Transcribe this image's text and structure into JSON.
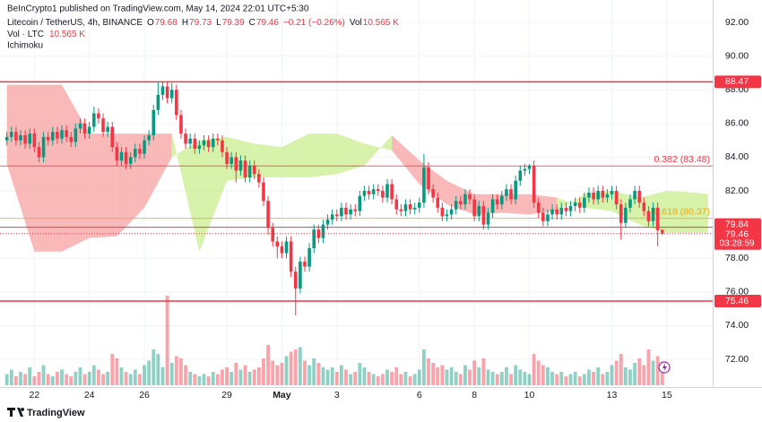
{
  "header": {
    "publisher": "BeInCrypto1 published on TradingView.com, May 14, 2024 22:01 UTC+5:30",
    "brand": "TradingView"
  },
  "chart_data": {
    "type": "candlestick",
    "title": "Litecoin / TetherUS, 4h, BINANCE",
    "ohlc_labels": [
      "O",
      "H",
      "L",
      "C"
    ],
    "change_label": "−0.21 (−0.26%)",
    "volume_title": "Vol",
    "volume_pane_title": "Vol · LTC",
    "last_volume_label": "10.565 K",
    "indicator": "Ichimoku",
    "countdown": "03:28:59",
    "xlim": [
      -1.5,
      154
    ],
    "ylim": [
      70.46,
      93.33
    ],
    "grid": true,
    "xticks": [
      {
        "value": 6,
        "label": "22"
      },
      {
        "value": 18,
        "label": "24"
      },
      {
        "value": 30,
        "label": "26"
      },
      {
        "value": 48,
        "label": "29"
      },
      {
        "value": 60,
        "label": "May"
      },
      {
        "value": 72,
        "label": "3"
      },
      {
        "value": 90,
        "label": "6"
      },
      {
        "value": 102,
        "label": "8"
      },
      {
        "value": 114,
        "label": "10"
      },
      {
        "value": 132,
        "label": "13"
      },
      {
        "value": 144,
        "label": "15"
      }
    ],
    "yticks": [
      {
        "value": 92,
        "label": "92.00"
      },
      {
        "value": 90,
        "label": "90.00"
      },
      {
        "value": 88,
        "label": "88.00"
      },
      {
        "value": 86,
        "label": "86.00"
      },
      {
        "value": 84,
        "label": "84.00"
      },
      {
        "value": 82,
        "label": "82.00"
      },
      {
        "value": 78,
        "label": "78.00"
      },
      {
        "value": 76,
        "label": "76.00"
      },
      {
        "value": 74,
        "label": "74.00"
      },
      {
        "value": 72,
        "label": "72.00"
      }
    ],
    "levels": [
      {
        "value": 88.47,
        "color": "#f23645"
      },
      {
        "value": 75.46,
        "color": "#f23645"
      }
    ],
    "marker_line": {
      "value": 79.84,
      "color": "#f23645"
    },
    "fib": [
      {
        "value": 83.48,
        "label": "0.382 (83.48)",
        "color": "#f23645"
      },
      {
        "value": 80.37,
        "label": "0.618 (80.37)",
        "color": "#f7a600"
      }
    ],
    "ichimoku": {
      "bull_color": "#c9ee8f",
      "bear_color": "#f7a1a1",
      "x": [
        0,
        6,
        12,
        18,
        24,
        30,
        36,
        42,
        48,
        54,
        60,
        66,
        72,
        78,
        84,
        90,
        96,
        102,
        108,
        114,
        120,
        126,
        132,
        138,
        144,
        150,
        153
      ],
      "span_a": [
        83.6,
        78.4,
        78.4,
        79.2,
        79.3,
        81.0,
        84.0,
        85.0,
        85.2,
        84.8,
        84.6,
        85.4,
        85.4,
        84.8,
        84.4,
        82.4,
        81.2,
        80.6,
        80.7,
        80.6,
        80.8,
        81.8,
        82.0,
        81.6,
        82.0,
        81.9,
        81.8
      ],
      "span_b": [
        88.3,
        88.3,
        88.3,
        85.4,
        85.4,
        85.4,
        85.4,
        78.4,
        82.6,
        82.8,
        82.8,
        82.8,
        83.0,
        83.5,
        85.3,
        83.8,
        82.6,
        81.8,
        81.8,
        81.8,
        81.6,
        81.0,
        80.8,
        80.0,
        79.5,
        79.5,
        79.5
      ]
    },
    "series": [
      {
        "up_color": "#089981",
        "down_color": "#f23645",
        "ohlc": [
          [
            85.0,
            85.5,
            84.7,
            85.2
          ],
          [
            85.2,
            85.8,
            84.9,
            85.5
          ],
          [
            85.5,
            85.8,
            84.7,
            85.0
          ],
          [
            85.0,
            85.6,
            84.7,
            85.3
          ],
          [
            85.3,
            85.6,
            84.5,
            84.8
          ],
          [
            84.8,
            85.7,
            84.5,
            85.4
          ],
          [
            85.4,
            85.7,
            84.3,
            84.6
          ],
          [
            84.6,
            84.9,
            83.7,
            84.0
          ],
          [
            84.0,
            85.5,
            83.7,
            85.2
          ],
          [
            85.2,
            85.5,
            84.7,
            85.0
          ],
          [
            85.0,
            85.8,
            84.7,
            85.5
          ],
          [
            85.5,
            85.8,
            84.8,
            85.1
          ],
          [
            85.1,
            85.9,
            84.8,
            85.6
          ],
          [
            85.6,
            85.9,
            84.9,
            85.2
          ],
          [
            85.2,
            85.5,
            84.6,
            84.9
          ],
          [
            84.9,
            86.0,
            84.6,
            85.7
          ],
          [
            85.7,
            86.3,
            85.4,
            86.0
          ],
          [
            86.0,
            86.3,
            85.1,
            85.4
          ],
          [
            85.4,
            86.1,
            85.1,
            85.8
          ],
          [
            85.8,
            87.0,
            85.5,
            86.6
          ],
          [
            86.6,
            86.9,
            86.0,
            86.3
          ],
          [
            86.3,
            86.6,
            85.2,
            85.5
          ],
          [
            85.5,
            86.1,
            85.2,
            85.8
          ],
          [
            85.8,
            86.1,
            84.3,
            84.6
          ],
          [
            84.6,
            84.9,
            83.5,
            83.8
          ],
          [
            83.8,
            84.6,
            83.5,
            84.3
          ],
          [
            84.3,
            84.6,
            83.3,
            83.6
          ],
          [
            83.6,
            84.3,
            83.3,
            84.0
          ],
          [
            84.0,
            84.8,
            83.7,
            84.5
          ],
          [
            84.5,
            84.8,
            83.9,
            84.2
          ],
          [
            84.2,
            85.3,
            83.9,
            85.0
          ],
          [
            85.0,
            85.6,
            84.7,
            85.3
          ],
          [
            85.3,
            87.1,
            85.0,
            86.8
          ],
          [
            86.8,
            88.5,
            86.5,
            87.7
          ],
          [
            87.7,
            88.5,
            87.4,
            88.2
          ],
          [
            88.2,
            88.5,
            87.2,
            87.5
          ],
          [
            87.5,
            88.4,
            87.2,
            88.0
          ],
          [
            88.0,
            88.3,
            86.2,
            86.5
          ],
          [
            86.5,
            86.8,
            85.1,
            85.4
          ],
          [
            85.4,
            85.7,
            84.5,
            84.8
          ],
          [
            84.8,
            85.4,
            84.5,
            85.1
          ],
          [
            85.1,
            85.4,
            84.2,
            84.5
          ],
          [
            84.5,
            85.0,
            84.2,
            84.7
          ],
          [
            84.7,
            85.3,
            84.4,
            85.0
          ],
          [
            85.0,
            85.3,
            84.3,
            84.6
          ],
          [
            84.6,
            85.4,
            84.3,
            85.1
          ],
          [
            85.1,
            85.4,
            84.7,
            85.0
          ],
          [
            85.0,
            85.3,
            84.0,
            84.3
          ],
          [
            84.3,
            84.6,
            83.3,
            83.6
          ],
          [
            83.6,
            84.3,
            83.3,
            84.0
          ],
          [
            84.0,
            84.3,
            82.5,
            83.2
          ],
          [
            83.2,
            84.1,
            82.9,
            83.8
          ],
          [
            83.8,
            84.1,
            82.5,
            82.8
          ],
          [
            82.8,
            83.8,
            82.5,
            83.5
          ],
          [
            83.5,
            83.8,
            82.7,
            83.0
          ],
          [
            83.0,
            83.3,
            82.2,
            82.5
          ],
          [
            82.5,
            82.8,
            81.1,
            81.4
          ],
          [
            81.4,
            81.7,
            79.4,
            79.8
          ],
          [
            79.8,
            80.1,
            78.7,
            79.0
          ],
          [
            79.0,
            79.3,
            78.0,
            78.7
          ],
          [
            78.7,
            79.0,
            78.0,
            78.3
          ],
          [
            78.3,
            79.3,
            78.0,
            79.0
          ],
          [
            79.0,
            79.3,
            76.9,
            77.2
          ],
          [
            77.2,
            77.5,
            74.6,
            76.2
          ],
          [
            76.2,
            78.1,
            75.9,
            77.8
          ],
          [
            77.8,
            78.1,
            77.2,
            77.5
          ],
          [
            77.5,
            78.9,
            77.2,
            78.6
          ],
          [
            78.6,
            80.0,
            78.3,
            79.7
          ],
          [
            79.7,
            80.0,
            78.9,
            79.2
          ],
          [
            79.2,
            80.3,
            78.9,
            80.0
          ],
          [
            80.0,
            80.6,
            79.7,
            80.3
          ],
          [
            80.3,
            80.9,
            80.0,
            80.6
          ],
          [
            80.6,
            80.9,
            80.2,
            80.5
          ],
          [
            80.5,
            81.3,
            80.2,
            81.0
          ],
          [
            81.0,
            81.3,
            80.3,
            80.6
          ],
          [
            80.6,
            81.2,
            80.3,
            80.9
          ],
          [
            80.9,
            81.2,
            80.5,
            80.8
          ],
          [
            80.8,
            82.0,
            80.5,
            81.7
          ],
          [
            81.7,
            82.3,
            81.4,
            82.0
          ],
          [
            82.0,
            82.3,
            81.5,
            81.8
          ],
          [
            81.8,
            82.4,
            81.5,
            82.1
          ],
          [
            82.1,
            82.4,
            81.7,
            82.0
          ],
          [
            82.0,
            82.3,
            81.3,
            81.6
          ],
          [
            81.6,
            82.7,
            81.3,
            82.4
          ],
          [
            82.4,
            82.7,
            81.2,
            81.5
          ],
          [
            81.5,
            81.8,
            80.6,
            80.9
          ],
          [
            80.9,
            81.2,
            80.5,
            80.8
          ],
          [
            80.8,
            81.5,
            80.5,
            81.2
          ],
          [
            81.2,
            81.5,
            80.6,
            80.9
          ],
          [
            80.9,
            81.3,
            80.6,
            81.0
          ],
          [
            81.0,
            81.6,
            80.7,
            81.3
          ],
          [
            81.3,
            84.2,
            81.0,
            83.4
          ],
          [
            83.4,
            83.7,
            81.8,
            82.1
          ],
          [
            82.1,
            82.4,
            81.3,
            81.6
          ],
          [
            81.6,
            81.9,
            80.7,
            81.0
          ],
          [
            81.0,
            81.3,
            80.2,
            80.5
          ],
          [
            80.5,
            80.9,
            80.2,
            80.6
          ],
          [
            80.6,
            81.2,
            80.3,
            80.9
          ],
          [
            80.9,
            81.7,
            80.6,
            81.4
          ],
          [
            81.4,
            81.7,
            80.9,
            81.2
          ],
          [
            81.2,
            82.1,
            80.9,
            81.8
          ],
          [
            81.8,
            82.1,
            81.2,
            81.5
          ],
          [
            81.5,
            81.8,
            80.2,
            80.5
          ],
          [
            80.5,
            81.4,
            80.2,
            81.1
          ],
          [
            81.1,
            81.4,
            79.7,
            80.0
          ],
          [
            80.0,
            81.0,
            79.7,
            80.7
          ],
          [
            80.7,
            81.8,
            80.4,
            81.5
          ],
          [
            81.5,
            81.8,
            80.9,
            81.2
          ],
          [
            81.2,
            82.0,
            80.9,
            81.7
          ],
          [
            81.7,
            82.4,
            81.4,
            82.1
          ],
          [
            82.1,
            82.4,
            81.2,
            81.5
          ],
          [
            81.5,
            82.9,
            81.2,
            82.6
          ],
          [
            82.6,
            83.5,
            82.3,
            83.2
          ],
          [
            83.2,
            83.6,
            82.9,
            83.3
          ],
          [
            83.3,
            83.6,
            83.0,
            83.5
          ],
          [
            83.5,
            83.8,
            81.0,
            81.3
          ],
          [
            81.3,
            81.6,
            80.4,
            80.7
          ],
          [
            80.7,
            81.0,
            79.9,
            80.2
          ],
          [
            80.2,
            80.9,
            79.9,
            80.6
          ],
          [
            80.6,
            81.2,
            80.3,
            80.9
          ],
          [
            80.9,
            81.2,
            80.3,
            80.6
          ],
          [
            80.6,
            81.3,
            80.3,
            81.0
          ],
          [
            81.0,
            81.3,
            80.5,
            80.8
          ],
          [
            80.8,
            81.4,
            80.5,
            81.1
          ],
          [
            81.1,
            81.6,
            80.8,
            81.3
          ],
          [
            81.3,
            81.6,
            80.7,
            81.0
          ],
          [
            81.0,
            81.9,
            80.7,
            81.6
          ],
          [
            81.6,
            82.2,
            81.3,
            81.9
          ],
          [
            81.9,
            82.2,
            81.2,
            81.5
          ],
          [
            81.5,
            82.3,
            81.2,
            82.0
          ],
          [
            82.0,
            82.3,
            81.3,
            81.6
          ],
          [
            81.6,
            82.1,
            81.3,
            81.8
          ],
          [
            81.8,
            82.3,
            81.5,
            82.0
          ],
          [
            82.0,
            82.3,
            80.9,
            81.2
          ],
          [
            81.2,
            81.5,
            79.1,
            80.1
          ],
          [
            80.1,
            81.3,
            79.8,
            81.0
          ],
          [
            81.0,
            81.8,
            80.7,
            81.5
          ],
          [
            81.5,
            82.3,
            81.2,
            82.0
          ],
          [
            82.0,
            82.3,
            81.0,
            81.3
          ],
          [
            81.3,
            81.6,
            80.5,
            80.8
          ],
          [
            80.8,
            81.1,
            79.9,
            80.2
          ],
          [
            80.2,
            81.3,
            79.9,
            81.0
          ],
          [
            81.0,
            81.3,
            78.7,
            79.67
          ],
          [
            79.68,
            79.73,
            79.39,
            79.46
          ]
        ],
        "volume": [
          5,
          7,
          4,
          6,
          5,
          8,
          4,
          6,
          9,
          5,
          4,
          6,
          7,
          5,
          4,
          6,
          8,
          5,
          6,
          9,
          7,
          5,
          6,
          14,
          12,
          8,
          6,
          5,
          7,
          5,
          9,
          11,
          16,
          14,
          8,
          40,
          10,
          13,
          12,
          9,
          6,
          5,
          4,
          5,
          4,
          6,
          5,
          7,
          8,
          6,
          10,
          7,
          9,
          6,
          7,
          8,
          12,
          18,
          11,
          9,
          10,
          13,
          15,
          16,
          17,
          11,
          9,
          12,
          10,
          8,
          7,
          8,
          6,
          9,
          7,
          5,
          6,
          10,
          8,
          6,
          5,
          4,
          5,
          7,
          6,
          8,
          5,
          6,
          4,
          5,
          7,
          16,
          12,
          10,
          8,
          9,
          7,
          8,
          6,
          5,
          9,
          7,
          11,
          8,
          12,
          7,
          6,
          5,
          6,
          8,
          5,
          9,
          7,
          6,
          5,
          14,
          11,
          9,
          8,
          6,
          5,
          6,
          4,
          5,
          6,
          4,
          5,
          7,
          6,
          8,
          5,
          6,
          9,
          11,
          14,
          8,
          7,
          10,
          12,
          9,
          16,
          11,
          13,
          10.565
        ]
      }
    ]
  }
}
